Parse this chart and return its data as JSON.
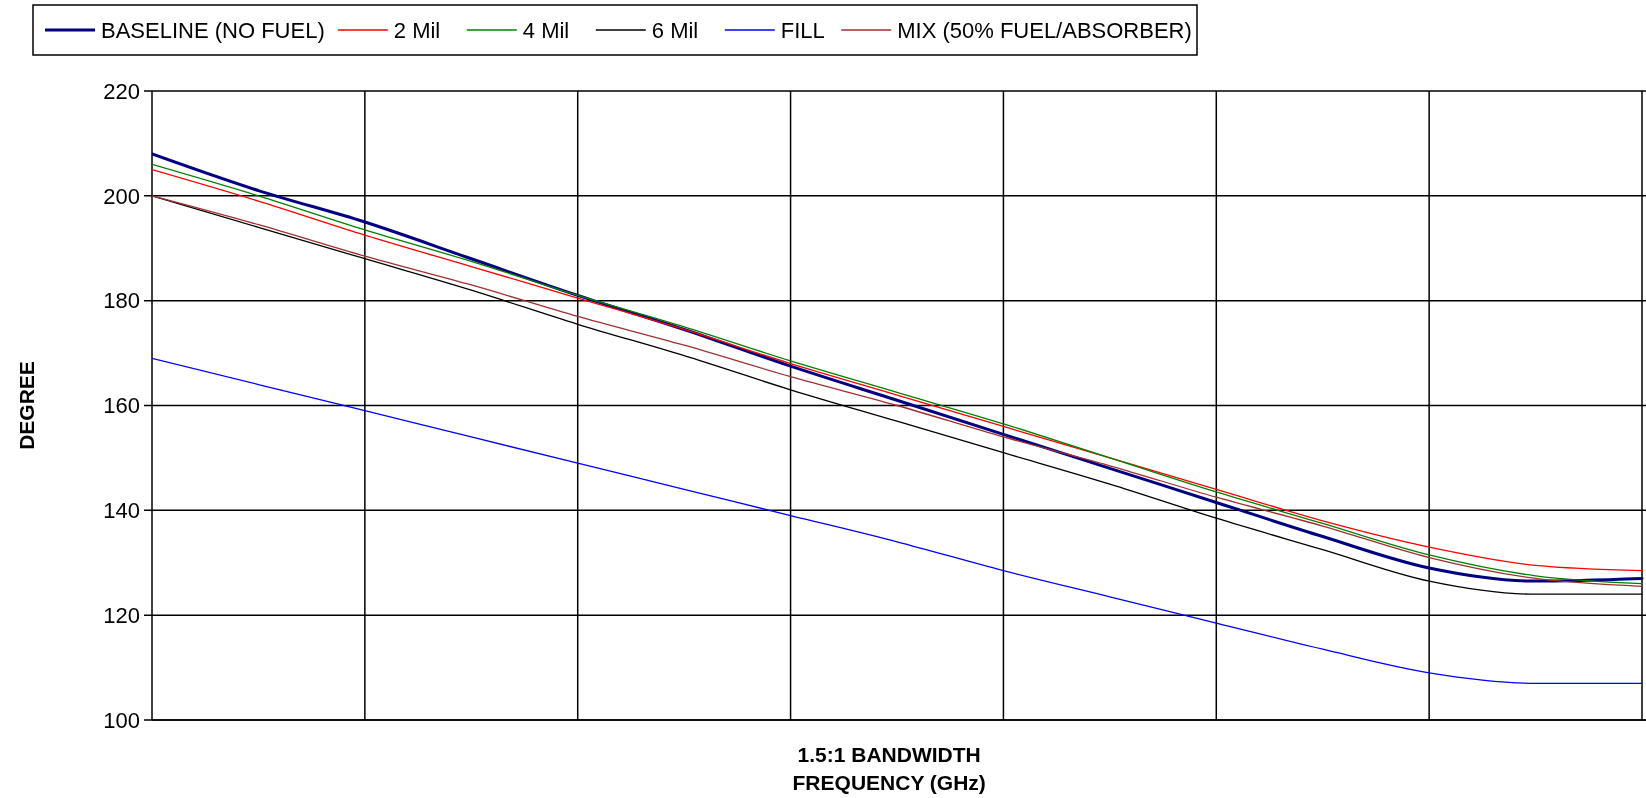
{
  "chart_data": {
    "type": "line",
    "xlabel": "1.5:1 BANDWIDTH\nFREQUENCY (GHz)",
    "ylabel": "DEGREE",
    "categories": [
      null,
      null,
      null,
      null,
      null,
      null,
      null,
      null,
      null,
      null,
      null,
      null,
      null,
      null,
      null
    ],
    "ylim": [
      100,
      220
    ],
    "yticks": [
      100,
      120,
      140,
      160,
      180,
      200,
      220
    ],
    "grid": true,
    "legend": "top",
    "marker": "none",
    "line_style": "solid",
    "series": [
      {
        "name": "BASELINE (NO FUEL)",
        "color": "#000080",
        "values": [
          208,
          201,
          195,
          188,
          181,
          174.5,
          167.5,
          161,
          154.5,
          148,
          141.5,
          135,
          129,
          126.5,
          127
        ]
      },
      {
        "name": "2 Mil",
        "color": "#ff0000",
        "values": [
          205,
          199,
          192.5,
          186.5,
          180.5,
          174.5,
          168,
          162,
          156,
          150,
          144,
          138,
          133,
          129.5,
          128.5
        ]
      },
      {
        "name": "4 Mil",
        "color": "#008000",
        "values": [
          206,
          200,
          193.5,
          187.5,
          181,
          175,
          168.5,
          162.5,
          156.5,
          150,
          143.5,
          137.5,
          131.5,
          127.5,
          126
        ]
      },
      {
        "name": "6 Mil",
        "color": "#000000",
        "values": [
          200,
          194,
          188,
          182,
          175.5,
          169.5,
          163,
          157,
          151,
          145,
          138.5,
          132.5,
          126.5,
          124,
          124
        ]
      },
      {
        "name": "FILL",
        "color": "#0000ff",
        "values": [
          169,
          164,
          159,
          154,
          149,
          144,
          139,
          134,
          128.5,
          123.5,
          118.5,
          113.5,
          109,
          107,
          107
        ]
      },
      {
        "name": "MIX (50% FUEL/ABSORBER)",
        "color": "#a03030",
        "values": [
          200,
          194.5,
          188.5,
          183,
          177,
          171.5,
          165.5,
          160,
          154,
          148.5,
          142.5,
          137,
          131,
          127,
          125.5
        ]
      }
    ]
  }
}
